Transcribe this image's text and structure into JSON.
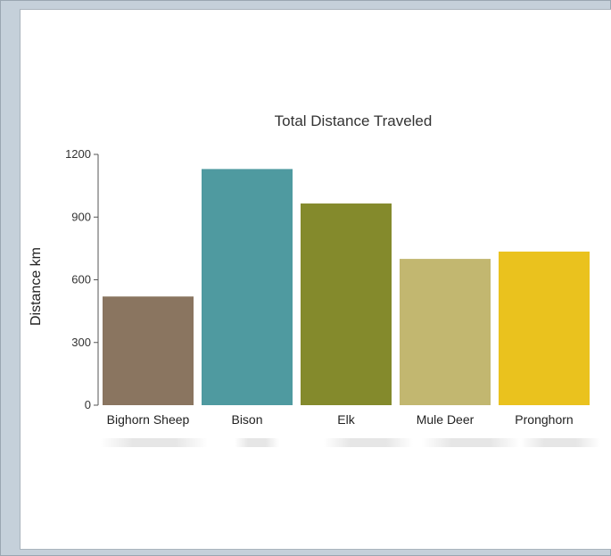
{
  "chart_data": {
    "type": "bar",
    "title": "Total Distance Traveled",
    "xlabel": "",
    "ylabel": "Distance km",
    "ylim": [
      0,
      1200
    ],
    "yticks": [
      0,
      300,
      600,
      900,
      1200
    ],
    "grid": false,
    "categories": [
      "Bighorn Sheep",
      "Bison",
      "Elk",
      "Mule Deer",
      "Pronghorn"
    ],
    "values": [
      520,
      1130,
      965,
      700,
      735
    ],
    "colors": [
      "#8a7560",
      "#4f9aa0",
      "#848a2c",
      "#c2b770",
      "#eac21e"
    ]
  }
}
